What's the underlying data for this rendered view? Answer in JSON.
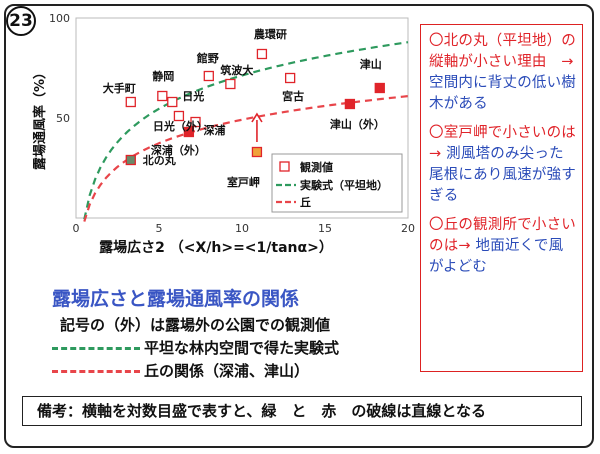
{
  "slide_number": "23",
  "chart_data": {
    "type": "scatter",
    "xlabel": "露場広さ2 （<X/h>=<1/tanα>）",
    "ylabel": "露場通風率（%）",
    "xlim": [
      0,
      20
    ],
    "ylim": [
      0,
      100
    ],
    "xticks": [
      0,
      5,
      10,
      15,
      20
    ],
    "yticks": [
      50,
      100
    ],
    "grid": false,
    "legend_position": "lower-right",
    "legend": {
      "observed": "観測値",
      "experimental": "実験式（平坦地）",
      "hill": "丘"
    },
    "points": [
      {
        "label": "大手町",
        "x": 3.3,
        "y": 58,
        "filled": false
      },
      {
        "label": "静岡",
        "x": 5.2,
        "y": 61,
        "filled": false
      },
      {
        "label": "館野",
        "x": 8.0,
        "y": 71,
        "filled": false
      },
      {
        "label": "日光",
        "x": 5.8,
        "y": 58,
        "filled": false
      },
      {
        "label": "筑波大",
        "x": 9.3,
        "y": 67,
        "filled": false
      },
      {
        "label": "農環研",
        "x": 11.2,
        "y": 82,
        "filled": false
      },
      {
        "label": "宮古",
        "x": 12.9,
        "y": 70,
        "filled": false
      },
      {
        "label": "日光（外）",
        "x": 6.2,
        "y": 51,
        "filled": false
      },
      {
        "label": "深浦",
        "x": 7.2,
        "y": 48,
        "filled": false
      },
      {
        "label": "深浦（外）",
        "x": 6.8,
        "y": 43,
        "filled": true
      },
      {
        "label": "北の丸",
        "x": 3.3,
        "y": 29,
        "filled": true
      },
      {
        "label": "室戸岬",
        "x": 10.9,
        "y": 33,
        "filled": true
      },
      {
        "label": "津山",
        "x": 18.3,
        "y": 65,
        "filled": true
      },
      {
        "label": "津山（外）",
        "x": 16.5,
        "y": 57,
        "filled": true
      }
    ],
    "annotation_arrow": {
      "from": [
        10.9,
        38
      ],
      "to": [
        10.9,
        52
      ]
    }
  },
  "notes": [
    {
      "head": "〇北の丸（平坦地）の縦軸が小さい理由　→",
      "body": "空間内に背丈の低い樹木がある"
    },
    {
      "head": "〇室戸岬で小さいのは→",
      "body": "測風塔のみ尖った尾根にあり風速が強すぎる"
    },
    {
      "head": "〇丘の観測所で小さいのは→",
      "body": "地面近くで風がよどむ"
    }
  ],
  "summary": {
    "title": "露場広さと露場通風率の関係",
    "line1": "記号の（外）は露場外の公園での観測値",
    "green_label": "平坦な林内空間で得た実験式",
    "red_label": "丘の関係（深浦、津山）"
  },
  "remark": "備考：横軸を対数目盛で表すと、緑　と　赤　の破線は直線となる",
  "colors": {
    "green_curve": "#2e9a5e",
    "red_curve": "#e8454a",
    "marker": "#e0242a",
    "filled_north": "#6a8a6a",
    "filled_muroto": "#f0a23a"
  }
}
